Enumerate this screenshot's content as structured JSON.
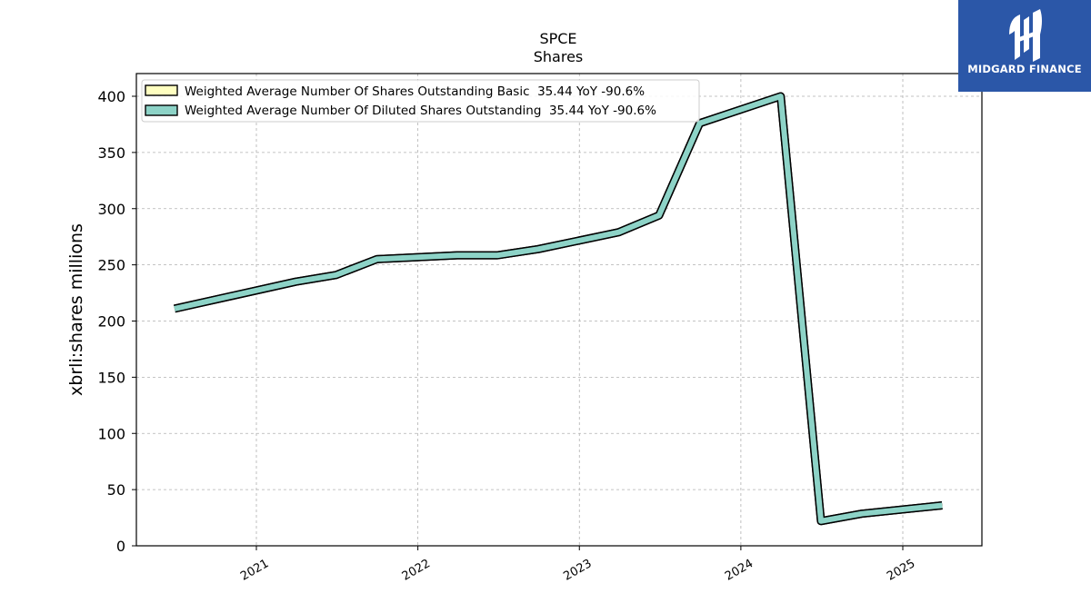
{
  "chart_data": {
    "type": "line",
    "title": "SPCE",
    "subtitle": "Shares",
    "ylabel": "xbrli:shares millions",
    "xlabel": "",
    "ylim": [
      0,
      420
    ],
    "yticks": [
      "0",
      "50",
      "100",
      "150",
      "200",
      "250",
      "300",
      "350",
      "400"
    ],
    "xticks": [
      "2021",
      "2022",
      "2023",
      "2024",
      "2025"
    ],
    "grid": true,
    "legend_position": "top-left",
    "series": [
      {
        "name": "Weighted Average Number Of Shares Outstanding Basic  35.44 YoY -90.6%",
        "color": "#ffffc0",
        "points": [
          [
            "2020-06-30",
            211
          ],
          [
            "2021-03-31",
            235
          ],
          [
            "2021-06-30",
            241
          ],
          [
            "2021-09-30",
            255
          ],
          [
            "2022-03-31",
            258.5
          ],
          [
            "2022-06-30",
            258.5
          ],
          [
            "2022-09-30",
            264
          ],
          [
            "2023-03-31",
            279
          ],
          [
            "2023-06-30",
            294
          ],
          [
            "2023-09-30",
            376
          ],
          [
            "2024-03-31",
            400
          ],
          [
            "2024-06-30",
            22
          ],
          [
            "2024-09-30",
            28.5
          ],
          [
            "2025-03-31",
            36
          ]
        ]
      },
      {
        "name": "Weighted Average Number Of Diluted Shares Outstanding  35.44 YoY -90.6%",
        "color": "#8dd3c7",
        "points": [
          [
            "2020-06-30",
            211
          ],
          [
            "2021-03-31",
            235
          ],
          [
            "2021-06-30",
            241
          ],
          [
            "2021-09-30",
            255
          ],
          [
            "2022-03-31",
            258.5
          ],
          [
            "2022-06-30",
            258.5
          ],
          [
            "2022-09-30",
            264
          ],
          [
            "2023-03-31",
            279
          ],
          [
            "2023-06-30",
            294
          ],
          [
            "2023-09-30",
            376
          ],
          [
            "2024-03-31",
            400
          ],
          [
            "2024-06-30",
            22
          ],
          [
            "2024-09-30",
            28.5
          ],
          [
            "2025-03-31",
            36
          ]
        ]
      }
    ]
  },
  "logo": {
    "text": "MIDGARD FINANCE",
    "background": "#2b57a8"
  }
}
